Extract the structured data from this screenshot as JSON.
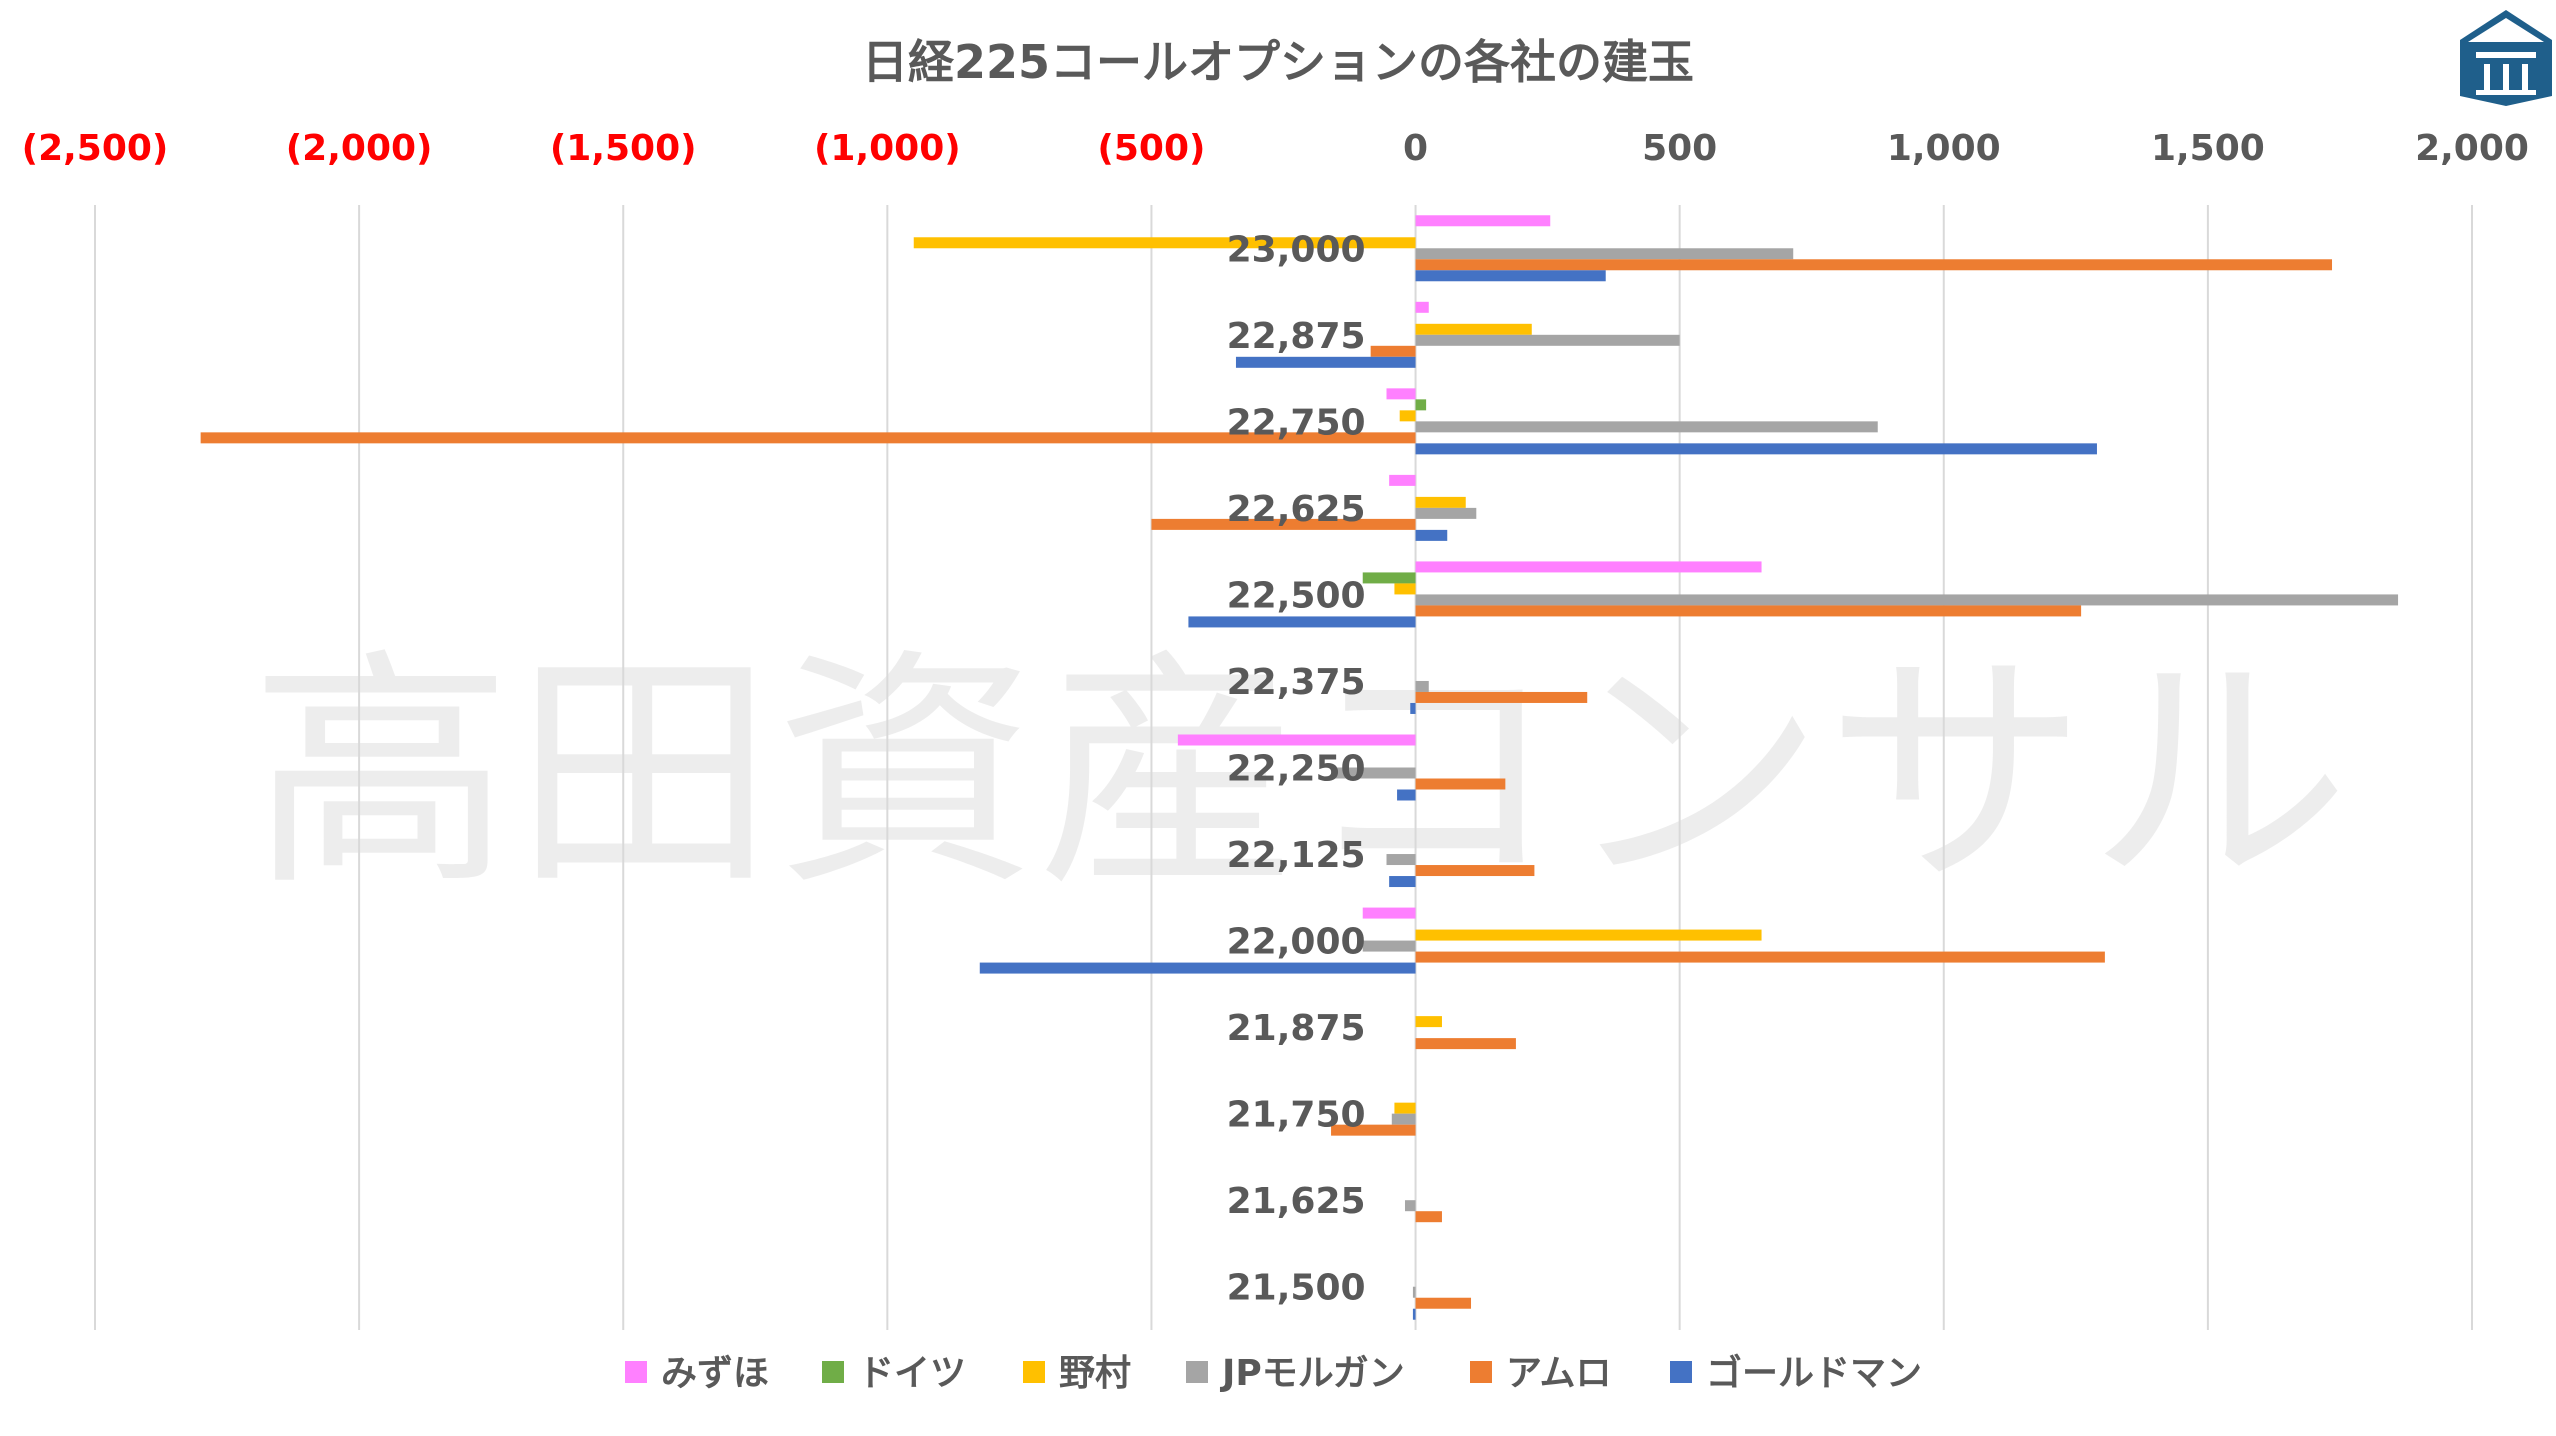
{
  "colors": {
    "みずほ": "#ff80ff",
    "ドイツ": "#70ad47",
    "野村": "#ffc000",
    "JPモルガン": "#a5a5a5",
    "アムロ": "#ed7d31",
    "ゴールドマン": "#4472c4",
    "neg_tick": "#ff0000",
    "text": "#595959",
    "grid": "#d9d9d9",
    "logo": "#1f5f8b"
  },
  "logo_icon": "takata-logo-icon",
  "watermark": "高田資産コンサル",
  "chart_data": {
    "type": "bar",
    "orientation": "horizontal",
    "title": "日経225コールオプションの各社の建玉",
    "categories": [
      "23,000",
      "22,875",
      "22,750",
      "22,625",
      "22,500",
      "22,375",
      "22,250",
      "22,125",
      "22,000",
      "21,875",
      "21,750",
      "21,625",
      "21,500"
    ],
    "series": [
      {
        "name": "みずほ",
        "values": [
          255,
          25,
          -55,
          -50,
          655,
          0,
          -450,
          0,
          -100,
          0,
          0,
          0,
          0
        ]
      },
      {
        "name": "ドイツ",
        "values": [
          0,
          0,
          20,
          0,
          -100,
          0,
          0,
          0,
          0,
          0,
          0,
          0,
          0
        ]
      },
      {
        "name": "野村",
        "values": [
          -950,
          220,
          -30,
          95,
          -40,
          0,
          0,
          0,
          655,
          50,
          -40,
          0,
          0
        ]
      },
      {
        "name": "JPモルガン",
        "values": [
          715,
          500,
          875,
          115,
          1860,
          25,
          -160,
          -55,
          -100,
          0,
          -45,
          -20,
          -5
        ]
      },
      {
        "name": "アムロ",
        "values": [
          1735,
          -85,
          -2300,
          -500,
          1260,
          325,
          170,
          225,
          1305,
          190,
          -160,
          50,
          105
        ]
      },
      {
        "name": "ゴールドマン",
        "values": [
          360,
          -340,
          1290,
          60,
          -430,
          -10,
          -35,
          -50,
          -825,
          0,
          0,
          0,
          -5
        ]
      }
    ],
    "xlim": [
      -2500,
      2000
    ],
    "xticks": [
      -2500,
      -2000,
      -1500,
      -1000,
      -500,
      0,
      500,
      1000,
      1500,
      2000
    ],
    "xtick_labels": [
      "(2,500)",
      "(2,000)",
      "(1,500)",
      "(1,000)",
      "(500)",
      "0",
      "500",
      "1,000",
      "1,500",
      "2,000"
    ],
    "axis_position": "top",
    "grid": true,
    "legend": "bottom"
  }
}
